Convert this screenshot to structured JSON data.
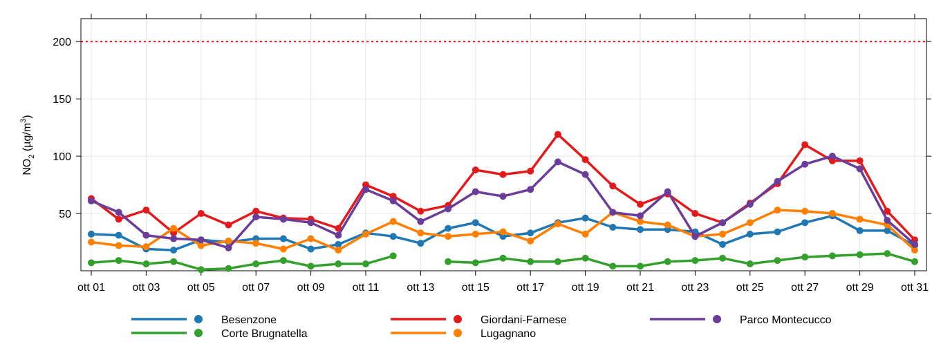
{
  "chart_data": {
    "type": "line",
    "ylabel_parts": [
      "NO",
      "2",
      " (µg/m",
      "3",
      ")"
    ],
    "categories": [
      "ott 01",
      null,
      "ott 03",
      null,
      "ott 05",
      null,
      "ott 07",
      null,
      "ott 09",
      null,
      "ott 11",
      null,
      "ott 13",
      null,
      "ott 15",
      null,
      "ott 17",
      null,
      "ott 19",
      null,
      "ott 21",
      null,
      "ott 23",
      null,
      "ott 25",
      null,
      "ott 27",
      null,
      "ott 29",
      null,
      "ott 31"
    ],
    "series": [
      {
        "name": "Besenzone",
        "color": "#1f78b4",
        "values": [
          32,
          31,
          19,
          18,
          27,
          25,
          28,
          28,
          19,
          23,
          33,
          30,
          24,
          37,
          42,
          30,
          33,
          42,
          46,
          38,
          36,
          36,
          34,
          23,
          32,
          34,
          42,
          48,
          35,
          35,
          22
        ]
      },
      {
        "name": "Corte Brugnatella",
        "color": "#33a02c",
        "values": [
          7,
          9,
          6,
          8,
          1,
          2,
          6,
          9,
          4,
          6,
          6,
          13,
          null,
          8,
          7,
          11,
          8,
          8,
          11,
          4,
          4,
          8,
          9,
          11,
          6,
          9,
          12,
          13,
          14,
          15,
          8
        ]
      },
      {
        "name": "Giordani-Farnese",
        "color": "#e31a1c",
        "values": [
          63,
          45,
          53,
          33,
          50,
          40,
          52,
          46,
          45,
          37,
          75,
          65,
          52,
          57,
          88,
          84,
          87,
          119,
          97,
          74,
          58,
          67,
          50,
          42,
          59,
          76,
          110,
          96,
          96,
          52,
          27
        ]
      },
      {
        "name": "Lugagnano",
        "color": "#ff7f00",
        "values": [
          25,
          22,
          21,
          37,
          22,
          26,
          24,
          19,
          28,
          18,
          32,
          43,
          33,
          30,
          32,
          34,
          26,
          41,
          32,
          51,
          43,
          40,
          30,
          32,
          42,
          53,
          52,
          50,
          45,
          40,
          18
        ]
      },
      {
        "name": "Parco Montecucco",
        "color": "#6a3d9a",
        "values": [
          61,
          51,
          31,
          28,
          27,
          20,
          47,
          45,
          42,
          31,
          71,
          61,
          43,
          54,
          69,
          65,
          71,
          95,
          84,
          51,
          48,
          69,
          30,
          42,
          58,
          78,
          93,
          100,
          89,
          44,
          23
        ]
      }
    ],
    "ylim": [
      0,
      220
    ],
    "yticks": [
      50,
      100,
      150,
      200
    ],
    "grid": true,
    "reference_line": 200,
    "reference_color": "#ff0000",
    "legend": "bottom"
  }
}
